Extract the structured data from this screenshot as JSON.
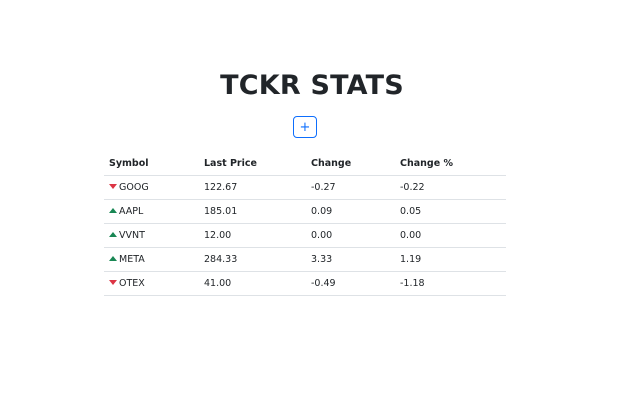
{
  "page": {
    "title": "TCKR STATS",
    "add_button_icon": "plus-icon",
    "add_button_glyph": "+"
  },
  "table": {
    "headers": {
      "symbol": "Symbol",
      "last_price": "Last Price",
      "change": "Change",
      "change_pct": "Change %"
    },
    "rows": [
      {
        "symbol": "GOOG",
        "direction": "down",
        "last_price": "122.67",
        "change": "-0.27",
        "change_pct": "-0.22"
      },
      {
        "symbol": "AAPL",
        "direction": "up",
        "last_price": "185.01",
        "change": "0.09",
        "change_pct": "0.05"
      },
      {
        "symbol": "VVNT",
        "direction": "up",
        "last_price": "12.00",
        "change": "0.00",
        "change_pct": "0.00"
      },
      {
        "symbol": "META",
        "direction": "up",
        "last_price": "284.33",
        "change": "3.33",
        "change_pct": "1.19"
      },
      {
        "symbol": "OTEX",
        "direction": "down",
        "last_price": "41.00",
        "change": "-0.49",
        "change_pct": "-1.18"
      }
    ]
  },
  "colors": {
    "accent": "#0d6efd",
    "down": "#dc3545",
    "up": "#198754",
    "text": "#212529",
    "border": "#dee2e6"
  }
}
